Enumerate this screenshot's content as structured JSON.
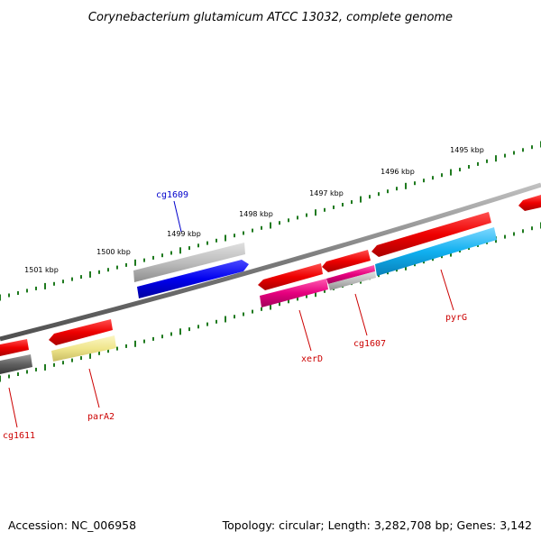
{
  "title": "Corynebacterium glutamicum ATCC 13032, complete genome",
  "footer": {
    "accession": "Accession: NC_006958",
    "summary": "Topology: circular; Length: 3,282,708 bp; Genes: 3,142"
  },
  "colors": {
    "backbone": "#8a8a8a",
    "tick": "#1f7a1f",
    "label_red": "#cc0000",
    "label_blue": "#0000cc"
  },
  "ruler_labels": [
    "1495 kbp",
    "1496 kbp",
    "1497 kbp",
    "1498 kbp",
    "1499 kbp",
    "1500 kbp",
    "1501 kbp"
  ],
  "genes": [
    {
      "name": "cg1609",
      "color": "#0000ee",
      "label_color": "#0000cc"
    },
    {
      "name": "xerD",
      "color": "#e6007e",
      "label_color": "#cc0000"
    },
    {
      "name": "cg1607",
      "color": "#e6007e",
      "label_color": "#cc0000"
    },
    {
      "name": "pyrG",
      "color": "#00aaee",
      "label_color": "#cc0000"
    },
    {
      "name": "parA2",
      "color": "#f0e68c",
      "label_color": "#cc0000"
    },
    {
      "name": "cg1611",
      "color": "#555555",
      "label_color": "#cc0000"
    }
  ]
}
